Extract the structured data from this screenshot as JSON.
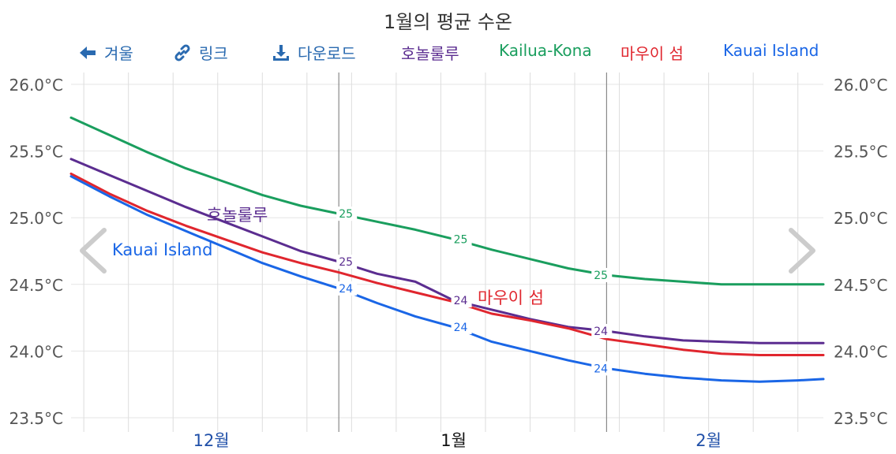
{
  "title": "1월의 평균 수온",
  "toolbar": {
    "back_label": "겨울",
    "link_label": "링크",
    "download_label": "다운로드"
  },
  "colors": {
    "honolulu": "#5b2d90",
    "kona": "#1a9e5e",
    "maui": "#e0262e",
    "kauai": "#1a66e6",
    "action": "#2a6ab0",
    "month": "#1f4fa8"
  },
  "chart_data": {
    "type": "line",
    "title": "1월의 평균 수온",
    "y_unit": "°C",
    "ylim": [
      23.5,
      26.0
    ],
    "y_ticks": [
      "26.0°C",
      "25.5°C",
      "25.0°C",
      "24.5°C",
      "24.0°C",
      "23.5°C"
    ],
    "y_tick_values": [
      26.0,
      25.5,
      25.0,
      24.5,
      24.0,
      23.5
    ],
    "x_labels": [
      {
        "label": "12월",
        "x": 12
      },
      {
        "label": "1월",
        "x": 31
      },
      {
        "label": "2월",
        "x": 51
      }
    ],
    "xlim": [
      1,
      60
    ],
    "grid": true,
    "legend_position": "top",
    "series": [
      {
        "name": "호놀룰루",
        "key": "honolulu",
        "inline_label": "호놀룰루",
        "x": [
          1,
          4,
          7,
          10,
          13,
          16,
          19,
          22,
          25,
          28,
          31,
          34,
          37,
          40,
          43,
          46,
          49,
          52,
          55,
          58,
          60
        ],
        "values": [
          25.44,
          25.32,
          25.2,
          25.08,
          24.97,
          24.86,
          24.75,
          24.67,
          24.58,
          24.52,
          24.38,
          24.31,
          24.24,
          24.18,
          24.15,
          24.11,
          24.08,
          24.07,
          24.06,
          24.06,
          24.06
        ],
        "point_labels": [
          {
            "x": 22,
            "text": "25"
          },
          {
            "x": 31,
            "text": "24"
          },
          {
            "x": 42,
            "text": "24"
          }
        ]
      },
      {
        "name": "Kailua-Kona",
        "key": "kona",
        "inline_label": "",
        "x": [
          1,
          4,
          7,
          10,
          13,
          16,
          19,
          22,
          25,
          28,
          31,
          34,
          37,
          40,
          43,
          46,
          49,
          52,
          55,
          58,
          60
        ],
        "values": [
          25.75,
          25.62,
          25.49,
          25.37,
          25.27,
          25.17,
          25.09,
          25.03,
          24.97,
          24.91,
          24.84,
          24.76,
          24.69,
          24.62,
          24.57,
          24.54,
          24.52,
          24.5,
          24.5,
          24.5,
          24.5
        ],
        "point_labels": [
          {
            "x": 22,
            "text": "25"
          },
          {
            "x": 31,
            "text": "25"
          },
          {
            "x": 42,
            "text": "25"
          }
        ]
      },
      {
        "name": "마우이 섬",
        "key": "maui",
        "inline_label": "마우이 섬",
        "x": [
          1,
          4,
          7,
          10,
          13,
          16,
          19,
          22,
          25,
          28,
          31,
          34,
          37,
          40,
          43,
          46,
          49,
          52,
          55,
          58,
          60
        ],
        "values": [
          25.33,
          25.18,
          25.05,
          24.94,
          24.84,
          24.74,
          24.66,
          24.59,
          24.51,
          24.44,
          24.37,
          24.28,
          24.23,
          24.17,
          24.09,
          24.05,
          24.01,
          23.98,
          23.97,
          23.97,
          23.97
        ],
        "point_labels": []
      },
      {
        "name": "Kauai Island",
        "key": "kauai",
        "inline_label": "Kauai Island",
        "x": [
          1,
          4,
          7,
          10,
          13,
          16,
          19,
          22,
          25,
          28,
          31,
          34,
          37,
          40,
          43,
          46,
          49,
          52,
          55,
          58,
          60
        ],
        "values": [
          25.31,
          25.16,
          25.02,
          24.9,
          24.78,
          24.66,
          24.56,
          24.47,
          24.36,
          24.26,
          24.18,
          24.07,
          24.0,
          23.93,
          23.87,
          23.83,
          23.8,
          23.78,
          23.77,
          23.78,
          23.79
        ],
        "point_labels": [
          {
            "x": 22,
            "text": "24"
          },
          {
            "x": 31,
            "text": "24"
          },
          {
            "x": 42,
            "text": "24"
          }
        ]
      }
    ]
  }
}
